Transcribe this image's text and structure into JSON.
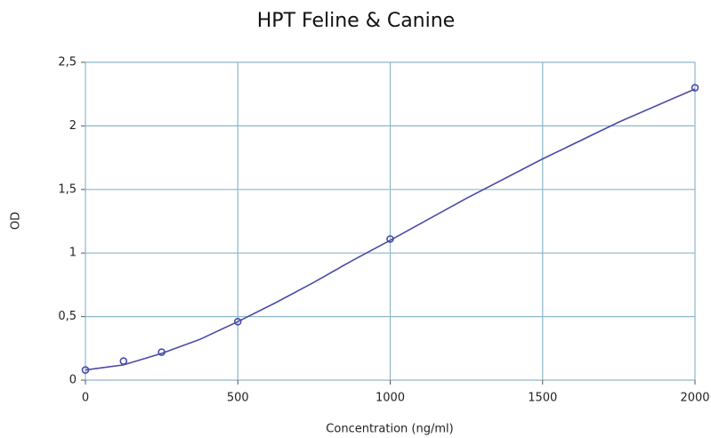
{
  "chart_data": {
    "type": "scatter",
    "title": "HPT Feline & Canine",
    "xlabel": "Concentration (ng/ml)",
    "ylabel": "OD",
    "xlim": [
      0,
      2000
    ],
    "ylim": [
      0,
      2.5
    ],
    "xticks": [
      0,
      500,
      1000,
      1500,
      2000
    ],
    "yticks": [
      0,
      {
        "value": 0.5,
        "label": "0,5"
      },
      1,
      {
        "value": 1.5,
        "label": "1,5"
      },
      2,
      {
        "value": 2.5,
        "label": "2,5"
      }
    ],
    "grid": true,
    "series": [
      {
        "mode": "markers",
        "color": "#4a4aa8",
        "x": [
          0,
          125,
          250,
          500,
          1000,
          2000
        ],
        "values": [
          0.08,
          0.15,
          0.22,
          0.46,
          1.11,
          2.3
        ]
      },
      {
        "mode": "line",
        "color": "#4a4aa8",
        "x": [
          0,
          125,
          250,
          375,
          500,
          625,
          750,
          875,
          1000,
          1250,
          1500,
          1750,
          2000
        ],
        "values": [
          0.08,
          0.12,
          0.21,
          0.32,
          0.46,
          0.61,
          0.77,
          0.94,
          1.1,
          1.43,
          1.74,
          2.03,
          2.29
        ]
      }
    ]
  }
}
